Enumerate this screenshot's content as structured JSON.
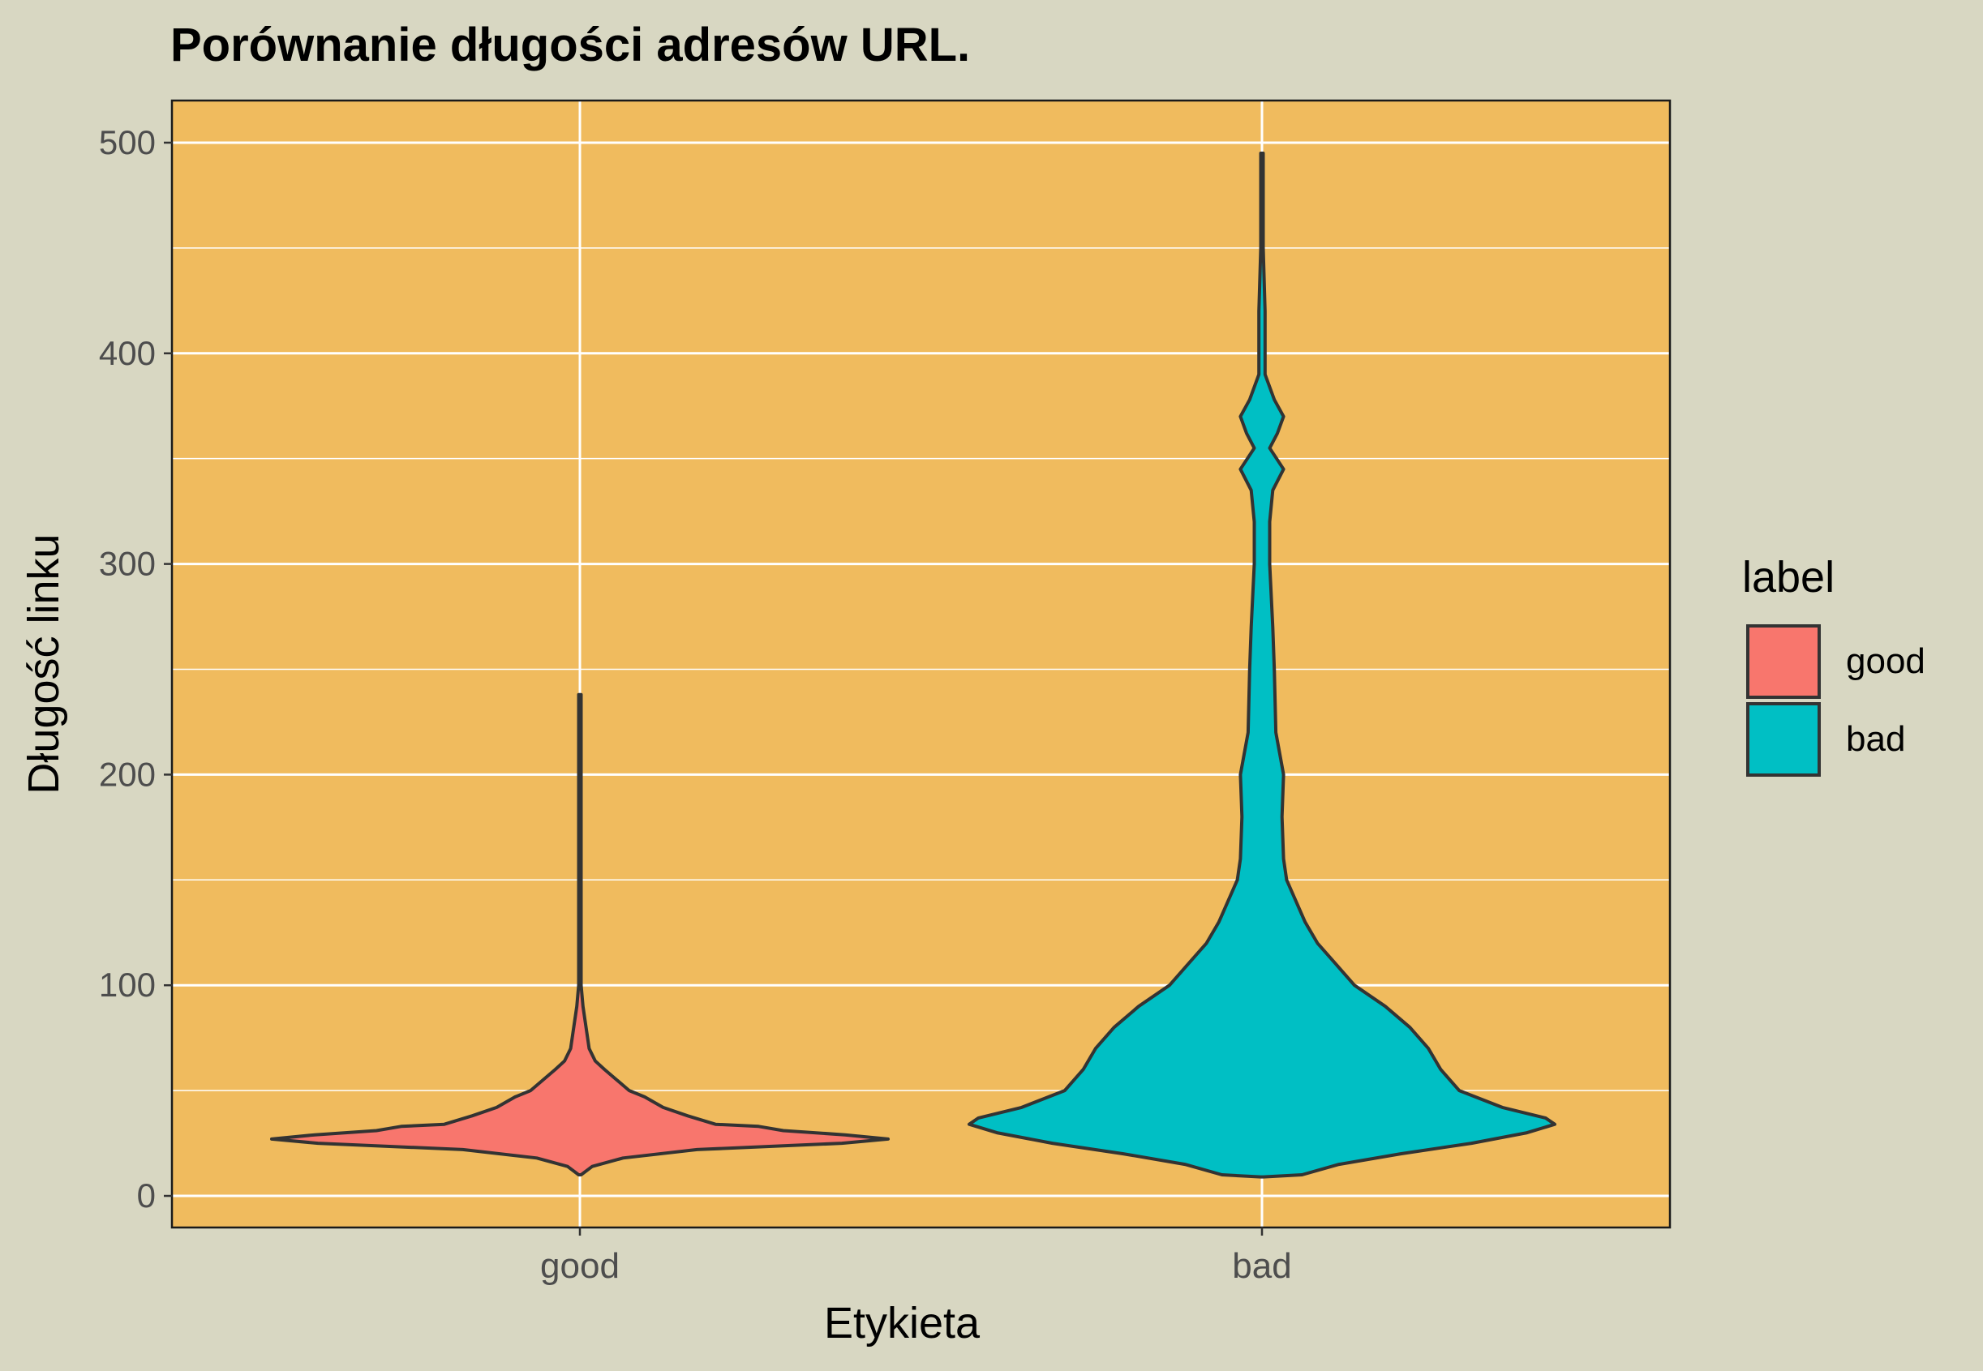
{
  "chart_data": {
    "type": "violin",
    "title": "Porównanie długości adresów URL.",
    "xlabel": "Etykieta",
    "ylabel": "Długość linku",
    "categories": [
      "good",
      "bad"
    ],
    "ylim": [
      -15,
      520
    ],
    "yticks": [
      0,
      100,
      200,
      300,
      400,
      500
    ],
    "grid": true,
    "legend": {
      "title": "label",
      "placement": "right",
      "entries": [
        {
          "label": "good",
          "color": "#f8766d"
        },
        {
          "label": "bad",
          "color": "#00bfc4"
        }
      ]
    },
    "series": [
      {
        "category": "good",
        "color": "#f8766d",
        "range": [
          10,
          238
        ],
        "density_profile": [
          [
            10,
            0.0
          ],
          [
            14,
            0.04
          ],
          [
            18,
            0.14
          ],
          [
            22,
            0.38
          ],
          [
            25,
            0.85
          ],
          [
            27,
            1.0
          ],
          [
            29,
            0.86
          ],
          [
            31,
            0.66
          ],
          [
            33,
            0.58
          ],
          [
            34,
            0.44
          ],
          [
            38,
            0.35
          ],
          [
            42,
            0.27
          ],
          [
            47,
            0.21
          ],
          [
            50,
            0.16
          ],
          [
            55,
            0.12
          ],
          [
            60,
            0.08
          ],
          [
            64,
            0.05
          ],
          [
            70,
            0.03
          ],
          [
            80,
            0.02
          ],
          [
            90,
            0.01
          ],
          [
            100,
            0.004
          ],
          [
            150,
            0.003
          ],
          [
            200,
            0.003
          ],
          [
            238,
            0.001
          ]
        ]
      },
      {
        "category": "bad",
        "color": "#00bfc4",
        "range": [
          9,
          495
        ],
        "density_profile": [
          [
            9,
            0.0
          ],
          [
            10,
            0.13
          ],
          [
            15,
            0.25
          ],
          [
            20,
            0.45
          ],
          [
            25,
            0.68
          ],
          [
            30,
            0.86
          ],
          [
            34,
            0.95
          ],
          [
            37,
            0.92
          ],
          [
            42,
            0.78
          ],
          [
            50,
            0.64
          ],
          [
            60,
            0.58
          ],
          [
            70,
            0.54
          ],
          [
            80,
            0.48
          ],
          [
            90,
            0.4
          ],
          [
            100,
            0.3
          ],
          [
            110,
            0.24
          ],
          [
            120,
            0.18
          ],
          [
            130,
            0.14
          ],
          [
            140,
            0.11
          ],
          [
            150,
            0.08
          ],
          [
            160,
            0.07
          ],
          [
            180,
            0.065
          ],
          [
            200,
            0.07
          ],
          [
            220,
            0.045
          ],
          [
            250,
            0.04
          ],
          [
            270,
            0.035
          ],
          [
            300,
            0.025
          ],
          [
            320,
            0.025
          ],
          [
            335,
            0.035
          ],
          [
            345,
            0.07
          ],
          [
            355,
            0.025
          ],
          [
            362,
            0.05
          ],
          [
            370,
            0.07
          ],
          [
            378,
            0.04
          ],
          [
            390,
            0.01
          ],
          [
            420,
            0.01
          ],
          [
            450,
            0.004
          ],
          [
            495,
            0.002
          ]
        ]
      }
    ]
  }
}
